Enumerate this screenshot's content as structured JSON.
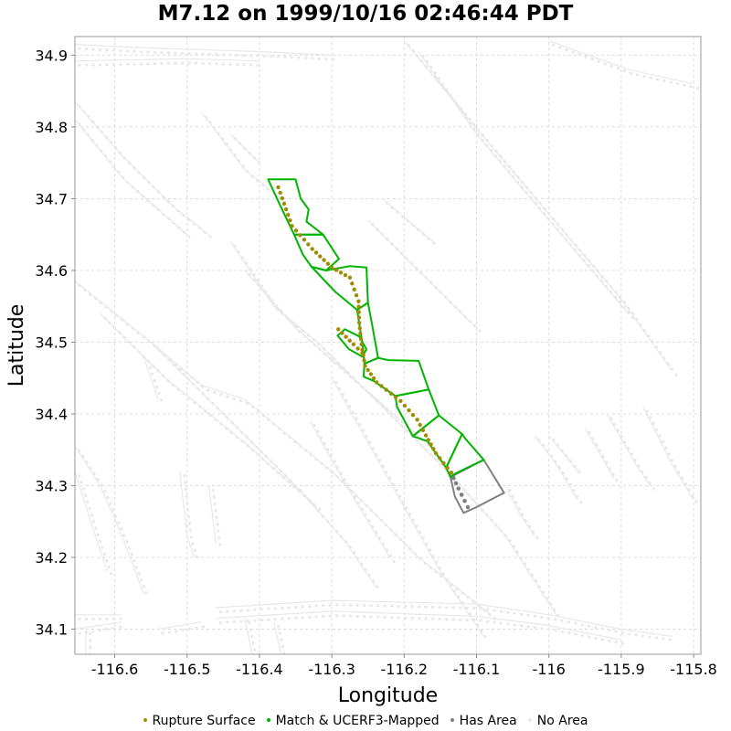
{
  "chart_data": {
    "type": "map",
    "title": "M7.12 on 1999/10/16 02:46:44 PDT",
    "xlabel": "Longitude",
    "ylabel": "Latitude",
    "xlim": [
      -116.655,
      -115.79
    ],
    "ylim": [
      34.065,
      34.926
    ],
    "x_ticks": [
      -116.6,
      -116.5,
      -116.4,
      -116.3,
      -116.2,
      -116.1,
      -116.0,
      -115.9,
      -115.8
    ],
    "x_tick_labels": [
      "-116.6",
      "-116.5",
      "-116.4",
      "-116.3",
      "-116.2",
      "-116.1",
      "-116",
      "-115.9",
      "-115.8"
    ],
    "y_ticks": [
      34.1,
      34.2,
      34.3,
      34.4,
      34.5,
      34.6,
      34.7,
      34.8,
      34.9
    ],
    "y_tick_labels": [
      "34.1",
      "34.2",
      "34.3",
      "34.4",
      "34.5",
      "34.6",
      "34.7",
      "34.8",
      "34.9"
    ],
    "grid": true,
    "legend_position": "bottom",
    "colors": {
      "rupture": "#a08c00",
      "match": "#00b400",
      "has_area": "#808080",
      "no_area": "#e8e8e8",
      "grid": "#dcdcdc"
    },
    "legend": [
      {
        "label": "Rupture Surface",
        "color": "#a08c00"
      },
      {
        "label": "Match & UCERF3-Mapped",
        "color": "#00b400"
      },
      {
        "label": "Has Area",
        "color": "#808080"
      },
      {
        "label": "No Area",
        "color": "#e8e8e8"
      }
    ],
    "rupture_surface": [
      [
        -116.374,
        34.716
      ],
      [
        -116.355,
        34.662
      ],
      [
        -116.327,
        34.63
      ],
      [
        -116.3,
        34.604
      ],
      [
        -116.275,
        34.59
      ],
      [
        -116.263,
        34.557
      ],
      [
        -116.262,
        34.527
      ],
      [
        -116.259,
        34.497
      ],
      [
        -116.254,
        34.467
      ],
      [
        -116.238,
        34.444
      ],
      [
        -116.205,
        34.418
      ],
      [
        -116.182,
        34.392
      ],
      [
        -116.17,
        34.37
      ],
      [
        -116.156,
        34.345
      ],
      [
        -116.135,
        34.318
      ]
    ],
    "rupture_branch": [
      [
        -116.291,
        34.518
      ],
      [
        -116.27,
        34.497
      ],
      [
        -116.258,
        34.485
      ]
    ],
    "has_area_trace": [
      [
        -116.135,
        34.318
      ],
      [
        -116.125,
        34.296
      ],
      [
        -116.112,
        34.27
      ]
    ],
    "match_polygons": [
      [
        [
          -116.388,
          34.727
        ],
        [
          -116.35,
          34.727
        ],
        [
          -116.343,
          34.7
        ],
        [
          -116.332,
          34.685
        ],
        [
          -116.335,
          34.668
        ],
        [
          -116.312,
          34.65
        ],
        [
          -116.352,
          34.65
        ],
        [
          -116.372,
          34.692
        ]
      ],
      [
        [
          -116.352,
          34.65
        ],
        [
          -116.312,
          34.65
        ],
        [
          -116.29,
          34.616
        ],
        [
          -116.308,
          34.6
        ],
        [
          -116.328,
          34.605
        ],
        [
          -116.34,
          34.622
        ]
      ],
      [
        [
          -116.328,
          34.605
        ],
        [
          -116.308,
          34.6
        ],
        [
          -116.275,
          34.606
        ],
        [
          -116.252,
          34.604
        ],
        [
          -116.25,
          34.555
        ],
        [
          -116.265,
          34.545
        ],
        [
          -116.295,
          34.57
        ]
      ],
      [
        [
          -116.265,
          34.545
        ],
        [
          -116.25,
          34.555
        ],
        [
          -116.245,
          34.528
        ],
        [
          -116.236,
          34.478
        ],
        [
          -116.255,
          34.47
        ],
        [
          -116.258,
          34.5
        ]
      ],
      [
        [
          -116.292,
          34.509
        ],
        [
          -116.282,
          34.518
        ],
        [
          -116.262,
          34.508
        ],
        [
          -116.252,
          34.49
        ],
        [
          -116.258,
          34.48
        ],
        [
          -116.276,
          34.49
        ]
      ],
      [
        [
          -116.255,
          34.47
        ],
        [
          -116.236,
          34.478
        ],
        [
          -116.222,
          34.475
        ],
        [
          -116.18,
          34.474
        ],
        [
          -116.166,
          34.434
        ],
        [
          -116.212,
          34.425
        ],
        [
          -116.242,
          34.446
        ],
        [
          -116.256,
          34.452
        ]
      ],
      [
        [
          -116.212,
          34.425
        ],
        [
          -116.166,
          34.434
        ],
        [
          -116.152,
          34.398
        ],
        [
          -116.188,
          34.369
        ],
        [
          -116.21,
          34.41
        ]
      ],
      [
        [
          -116.188,
          34.369
        ],
        [
          -116.152,
          34.398
        ],
        [
          -116.12,
          34.372
        ],
        [
          -116.142,
          34.325
        ],
        [
          -116.168,
          34.362
        ]
      ],
      [
        [
          -116.142,
          34.325
        ],
        [
          -116.12,
          34.372
        ],
        [
          -116.115,
          34.365
        ],
        [
          -116.09,
          34.336
        ],
        [
          -116.129,
          34.317
        ],
        [
          -116.136,
          34.312
        ]
      ]
    ],
    "has_area_polygons": [
      [
        [
          -116.136,
          34.312
        ],
        [
          -116.09,
          34.336
        ],
        [
          -116.062,
          34.29
        ],
        [
          -116.1,
          34.27
        ],
        [
          -116.118,
          34.262
        ],
        [
          -116.13,
          34.285
        ]
      ]
    ],
    "no_area_polylines": [
      [
        [
          -116.655,
          34.915
        ],
        [
          -116.55,
          34.91
        ],
        [
          -116.4,
          34.905
        ],
        [
          -116.3,
          34.9
        ]
      ],
      [
        [
          -116.655,
          34.892
        ],
        [
          -116.5,
          34.895
        ],
        [
          -116.4,
          34.892
        ]
      ],
      [
        [
          -116.2,
          34.92
        ],
        [
          -116.11,
          34.81
        ],
        [
          -116.01,
          34.69
        ],
        [
          -115.9,
          34.56
        ],
        [
          -115.83,
          34.46
        ]
      ],
      [
        [
          -116.18,
          34.905
        ],
        [
          -116.1,
          34.79
        ],
        [
          -116.0,
          34.67
        ],
        [
          -115.89,
          34.54
        ]
      ],
      [
        [
          -116.0,
          34.92
        ],
        [
          -115.89,
          34.88
        ],
        [
          -115.8,
          34.86
        ]
      ],
      [
        [
          -116.655,
          34.835
        ],
        [
          -116.59,
          34.76
        ],
        [
          -116.52,
          34.69
        ],
        [
          -116.47,
          34.65
        ]
      ],
      [
        [
          -116.655,
          34.81
        ],
        [
          -116.59,
          34.73
        ],
        [
          -116.5,
          34.65
        ]
      ],
      [
        [
          -116.655,
          34.585
        ],
        [
          -116.55,
          34.5
        ],
        [
          -116.45,
          34.4
        ],
        [
          -116.35,
          34.3
        ],
        [
          -116.28,
          34.22
        ],
        [
          -116.24,
          34.16
        ]
      ],
      [
        [
          -116.62,
          34.54
        ],
        [
          -116.53,
          34.45
        ],
        [
          -116.42,
          34.36
        ],
        [
          -116.32,
          34.27
        ]
      ],
      [
        [
          -116.55,
          34.5
        ],
        [
          -116.48,
          34.44
        ],
        [
          -116.42,
          34.42
        ],
        [
          -116.3,
          34.32
        ],
        [
          -116.18,
          34.2
        ],
        [
          -116.08,
          34.12
        ]
      ],
      [
        [
          -116.44,
          34.64
        ],
        [
          -116.38,
          34.55
        ],
        [
          -116.32,
          34.5
        ],
        [
          -116.23,
          34.41
        ],
        [
          -116.15,
          34.33
        ],
        [
          -116.06,
          34.23
        ],
        [
          -115.99,
          34.12
        ]
      ],
      [
        [
          -116.42,
          34.6
        ],
        [
          -116.35,
          34.52
        ],
        [
          -116.26,
          34.44
        ],
        [
          -116.17,
          34.36
        ]
      ],
      [
        [
          -116.3,
          34.45
        ],
        [
          -116.25,
          34.36
        ],
        [
          -116.2,
          34.27
        ],
        [
          -116.15,
          34.18
        ],
        [
          -116.09,
          34.09
        ]
      ],
      [
        [
          -116.33,
          34.39
        ],
        [
          -116.28,
          34.3
        ],
        [
          -116.22,
          34.2
        ]
      ],
      [
        [
          -116.48,
          34.82
        ],
        [
          -116.42,
          34.74
        ],
        [
          -116.37,
          34.7
        ]
      ],
      [
        [
          -116.44,
          34.79
        ],
        [
          -116.4,
          34.75
        ]
      ],
      [
        [
          -116.02,
          34.37
        ],
        [
          -115.99,
          34.33
        ],
        [
          -115.96,
          34.28
        ]
      ],
      [
        [
          -116.0,
          34.37
        ],
        [
          -115.96,
          34.32
        ]
      ],
      [
        [
          -115.92,
          34.4
        ],
        [
          -115.88,
          34.33
        ],
        [
          -115.86,
          34.3
        ]
      ],
      [
        [
          -115.95,
          34.38
        ],
        [
          -115.91,
          34.31
        ]
      ],
      [
        [
          -115.87,
          34.41
        ],
        [
          -115.83,
          34.33
        ],
        [
          -115.8,
          34.28
        ]
      ],
      [
        [
          -116.06,
          34.3
        ],
        [
          -116.04,
          34.26
        ],
        [
          -116.02,
          34.23
        ]
      ],
      [
        [
          -116.655,
          34.355
        ],
        [
          -116.62,
          34.3
        ],
        [
          -116.59,
          34.23
        ],
        [
          -116.56,
          34.15
        ]
      ],
      [
        [
          -116.655,
          34.32
        ],
        [
          -116.63,
          34.24
        ],
        [
          -116.61,
          34.18
        ]
      ],
      [
        [
          -116.51,
          34.32
        ],
        [
          -116.5,
          34.23
        ],
        [
          -116.49,
          34.2
        ]
      ],
      [
        [
          -116.47,
          34.3
        ],
        [
          -116.46,
          34.22
        ]
      ],
      [
        [
          -116.655,
          34.12
        ],
        [
          -116.59,
          34.12
        ]
      ],
      [
        [
          -116.655,
          34.1
        ],
        [
          -116.59,
          34.11
        ]
      ],
      [
        [
          -116.46,
          34.13
        ],
        [
          -116.3,
          34.14
        ],
        [
          -116.1,
          34.135
        ],
        [
          -116.0,
          34.12
        ],
        [
          -115.9,
          34.1
        ],
        [
          -115.83,
          34.09
        ]
      ],
      [
        [
          -116.46,
          34.115
        ],
        [
          -116.3,
          34.125
        ],
        [
          -116.1,
          34.118
        ],
        [
          -116.0,
          34.105
        ],
        [
          -115.9,
          34.085
        ]
      ],
      [
        [
          -116.54,
          34.1
        ],
        [
          -116.48,
          34.11
        ]
      ],
      [
        [
          -116.42,
          34.115
        ],
        [
          -116.41,
          34.065
        ]
      ],
      [
        [
          -116.38,
          34.11
        ],
        [
          -116.37,
          34.065
        ]
      ],
      [
        [
          -116.64,
          34.1
        ],
        [
          -116.64,
          34.065
        ]
      ],
      [
        [
          -116.56,
          34.48
        ],
        [
          -116.54,
          34.42
        ]
      ],
      [
        [
          -116.25,
          34.67
        ],
        [
          -116.18,
          34.6
        ],
        [
          -116.1,
          34.52
        ]
      ],
      [
        [
          -116.23,
          34.7
        ],
        [
          -116.16,
          34.64
        ]
      ]
    ]
  }
}
